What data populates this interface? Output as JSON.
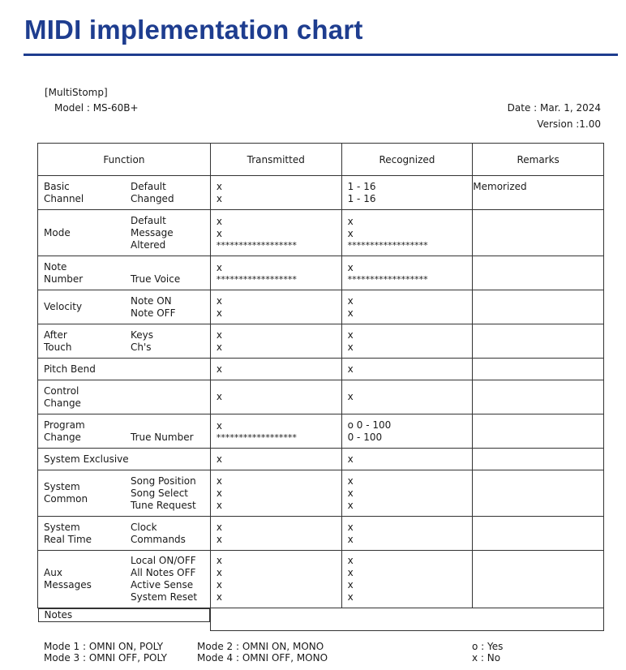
{
  "title": "MIDI implementation chart",
  "meta": {
    "product": "[MultiStomp]",
    "model": "Model : MS-60B+",
    "date": "Date : Mar. 1, 2024",
    "version": "Version :1.00"
  },
  "headers": {
    "function": "Function",
    "transmitted": "Transmitted",
    "recognized": "Recognized",
    "remarks": "Remarks"
  },
  "stars": "******************",
  "rows": [
    {
      "group": [
        "Basic",
        "Channel"
      ],
      "sub": [
        "Default",
        "Changed"
      ],
      "tx": [
        "x",
        "x"
      ],
      "rx": [
        "1 - 16",
        "1 - 16"
      ],
      "remarks": "Memorized"
    },
    {
      "group": [
        "Mode"
      ],
      "sub": [
        "Default",
        "Message",
        "Altered"
      ],
      "tx": [
        "x",
        "x",
        "******************"
      ],
      "rx": [
        "x",
        "x",
        "******************"
      ],
      "remarks": ""
    },
    {
      "group": [
        "Note",
        "Number"
      ],
      "sub": [
        "",
        "True Voice"
      ],
      "tx": [
        "x",
        "******************"
      ],
      "rx": [
        "x",
        "******************"
      ],
      "remarks": ""
    },
    {
      "group": [
        "Velocity"
      ],
      "sub": [
        "Note ON",
        "Note OFF"
      ],
      "tx": [
        "x",
        "x"
      ],
      "rx": [
        "x",
        "x"
      ],
      "remarks": ""
    },
    {
      "group": [
        "After",
        "Touch"
      ],
      "sub": [
        "Keys",
        "Ch's"
      ],
      "tx": [
        "x",
        "x"
      ],
      "rx": [
        "x",
        "x"
      ],
      "remarks": ""
    },
    {
      "group": [
        "Pitch Bend"
      ],
      "sub": [],
      "tx": [
        "x"
      ],
      "rx": [
        "x"
      ],
      "remarks": ""
    },
    {
      "group": [
        "Control",
        "Change"
      ],
      "sub": [],
      "tx": [
        "x"
      ],
      "rx": [
        "x"
      ],
      "remarks": ""
    },
    {
      "group": [
        "Program",
        "Change"
      ],
      "sub": [
        "",
        "True Number"
      ],
      "tx": [
        "x",
        "******************"
      ],
      "rx": [
        "o 0 - 100",
        "0 - 100"
      ],
      "remarks": ""
    },
    {
      "group": [
        "System Exclusive"
      ],
      "sub": [],
      "tx": [
        "x"
      ],
      "rx": [
        "x"
      ],
      "remarks": ""
    },
    {
      "group": [
        "System",
        "Common"
      ],
      "sub": [
        "Song Position",
        "Song Select",
        "Tune Request"
      ],
      "tx": [
        "x",
        "x",
        "x"
      ],
      "rx": [
        "x",
        "x",
        "x"
      ],
      "remarks": ""
    },
    {
      "group": [
        "System",
        "Real Time"
      ],
      "sub": [
        "Clock",
        "Commands"
      ],
      "tx": [
        "x",
        "x"
      ],
      "rx": [
        "x",
        "x"
      ],
      "remarks": ""
    },
    {
      "group": [
        "Aux",
        "Messages"
      ],
      "sub": [
        "Local ON/OFF",
        "All Notes OFF",
        "Active Sense",
        "System Reset"
      ],
      "tx": [
        "x",
        "x",
        "x",
        "x"
      ],
      "rx": [
        "x",
        "x",
        "x",
        "x"
      ],
      "remarks": ""
    }
  ],
  "notes_label": "Notes",
  "legend": {
    "mode1": "Mode 1 : OMNI ON,  POLY",
    "mode3": "Mode 3 : OMNI OFF, POLY",
    "mode2": "Mode 2 : OMNI ON,  MONO",
    "mode4": "Mode 4 : OMNI OFF, MONO",
    "yes": "o : Yes",
    "no": "x : No"
  }
}
